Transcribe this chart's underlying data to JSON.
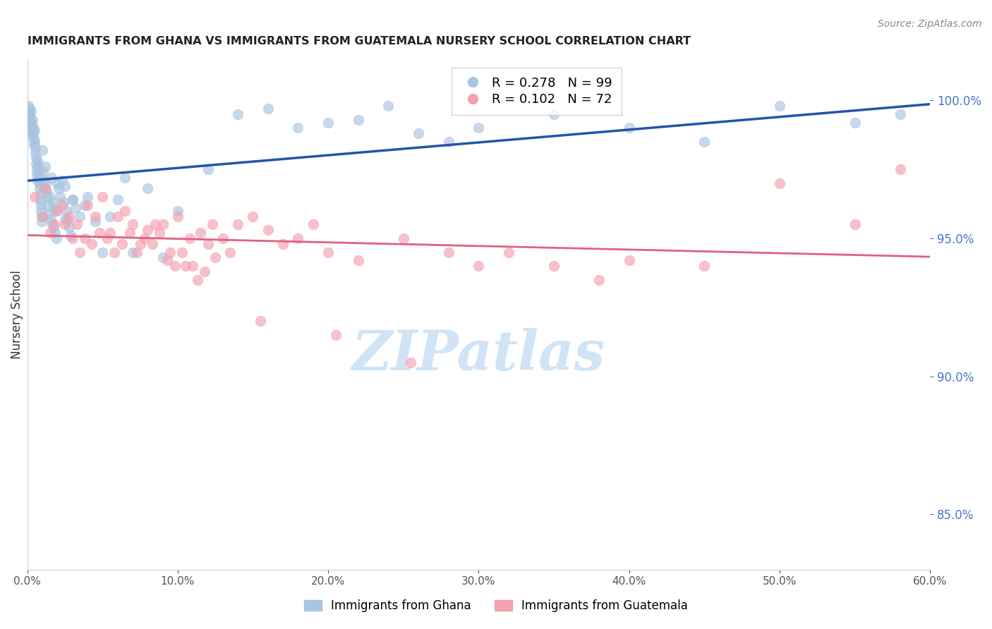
{
  "title": "IMMIGRANTS FROM GHANA VS IMMIGRANTS FROM GUATEMALA NURSERY SCHOOL CORRELATION CHART",
  "source": "Source: ZipAtlas.com",
  "ylabel_left": "Nursery School",
  "xlim": [
    0.0,
    60.0
  ],
  "ylim": [
    83.0,
    101.5
  ],
  "yticks_right": [
    85.0,
    90.0,
    95.0,
    100.0
  ],
  "ghana_R": 0.278,
  "ghana_N": 99,
  "guatemala_R": 0.102,
  "guatemala_N": 72,
  "ghana_color": "#a8c4e0",
  "guatemala_color": "#f4a0b0",
  "ghana_line_color": "#2255aa",
  "guatemala_line_color": "#e06080",
  "legend_label_ghana": "Immigrants from Ghana",
  "legend_label_guatemala": "Immigrants from Guatemala",
  "background_color": "#ffffff",
  "grid_color": "#cccccc",
  "title_color": "#222222",
  "right_axis_color": "#4477cc",
  "watermark_text": "ZIPatlas",
  "watermark_color": "#d0e4f5",
  "ghana_x": [
    0.05,
    0.08,
    0.1,
    0.12,
    0.15,
    0.18,
    0.2,
    0.22,
    0.25,
    0.28,
    0.3,
    0.32,
    0.35,
    0.38,
    0.4,
    0.42,
    0.45,
    0.48,
    0.5,
    0.52,
    0.55,
    0.58,
    0.6,
    0.62,
    0.65,
    0.68,
    0.7,
    0.72,
    0.75,
    0.78,
    0.8,
    0.82,
    0.85,
    0.88,
    0.9,
    0.92,
    0.95,
    0.98,
    1.0,
    1.05,
    1.1,
    1.15,
    1.2,
    1.25,
    1.3,
    1.35,
    1.4,
    1.45,
    1.5,
    1.55,
    1.6,
    1.65,
    1.7,
    1.75,
    1.8,
    1.85,
    1.9,
    1.95,
    2.0,
    2.1,
    2.2,
    2.3,
    2.4,
    2.5,
    2.6,
    2.7,
    2.8,
    2.9,
    3.0,
    3.2,
    3.5,
    3.8,
    4.0,
    4.5,
    5.0,
    5.5,
    6.0,
    6.5,
    7.0,
    8.0,
    9.0,
    10.0,
    12.0,
    14.0,
    16.0,
    18.0,
    20.0,
    22.0,
    24.0,
    26.0,
    28.0,
    30.0,
    35.0,
    40.0,
    45.0,
    50.0,
    55.0,
    58.0,
    2.5,
    3.0
  ],
  "ghana_y": [
    99.6,
    99.8,
    99.5,
    99.2,
    99.7,
    99.4,
    99.3,
    99.0,
    99.6,
    99.1,
    98.9,
    98.7,
    99.3,
    99.0,
    98.8,
    98.6,
    98.4,
    98.9,
    98.5,
    98.3,
    98.1,
    97.9,
    97.7,
    97.5,
    97.3,
    97.1,
    97.8,
    97.6,
    97.4,
    97.2,
    97.0,
    96.8,
    96.6,
    96.4,
    96.2,
    96.0,
    95.8,
    95.6,
    98.2,
    97.4,
    97.1,
    96.8,
    97.6,
    97.0,
    96.7,
    96.5,
    96.2,
    95.9,
    96.5,
    95.7,
    97.2,
    95.5,
    96.3,
    95.4,
    96.1,
    95.2,
    96.0,
    95.0,
    97.0,
    96.8,
    96.5,
    97.1,
    96.3,
    96.9,
    96.0,
    95.7,
    95.4,
    95.1,
    96.4,
    96.1,
    95.8,
    96.2,
    96.5,
    95.6,
    94.5,
    95.8,
    96.4,
    97.2,
    94.5,
    96.8,
    94.3,
    96.0,
    97.5,
    99.5,
    99.7,
    99.0,
    99.2,
    99.3,
    99.8,
    98.8,
    98.5,
    99.0,
    99.5,
    99.0,
    98.5,
    99.8,
    99.2,
    99.5,
    95.7,
    96.4
  ],
  "guatemala_x": [
    0.5,
    1.0,
    1.2,
    1.5,
    1.8,
    2.0,
    2.3,
    2.5,
    2.8,
    3.0,
    3.3,
    3.5,
    3.8,
    4.0,
    4.3,
    4.5,
    4.8,
    5.0,
    5.3,
    5.5,
    5.8,
    6.0,
    6.3,
    6.5,
    6.8,
    7.0,
    7.3,
    7.5,
    7.8,
    8.0,
    8.3,
    8.5,
    8.8,
    9.0,
    9.3,
    9.5,
    9.8,
    10.0,
    10.3,
    10.5,
    10.8,
    11.0,
    11.3,
    11.5,
    11.8,
    12.0,
    12.3,
    12.5,
    13.0,
    13.5,
    14.0,
    15.0,
    15.5,
    16.0,
    17.0,
    18.0,
    19.0,
    20.0,
    20.5,
    22.0,
    25.0,
    25.5,
    28.0,
    30.0,
    32.0,
    35.0,
    38.0,
    40.0,
    45.0,
    50.0,
    55.0,
    58.0
  ],
  "guatemala_y": [
    96.5,
    95.8,
    96.8,
    95.2,
    95.5,
    96.0,
    96.2,
    95.5,
    95.8,
    95.0,
    95.5,
    94.5,
    95.0,
    96.2,
    94.8,
    95.8,
    95.2,
    96.5,
    95.0,
    95.2,
    94.5,
    95.8,
    94.8,
    96.0,
    95.2,
    95.5,
    94.5,
    94.8,
    95.0,
    95.3,
    94.8,
    95.5,
    95.2,
    95.5,
    94.2,
    94.5,
    94.0,
    95.8,
    94.5,
    94.0,
    95.0,
    94.0,
    93.5,
    95.2,
    93.8,
    94.8,
    95.5,
    94.3,
    95.0,
    94.5,
    95.5,
    95.8,
    92.0,
    95.3,
    94.8,
    95.0,
    95.5,
    94.5,
    91.5,
    94.2,
    95.0,
    90.5,
    94.5,
    94.0,
    94.5,
    94.0,
    93.5,
    94.2,
    94.0,
    97.0,
    95.5,
    97.5
  ]
}
